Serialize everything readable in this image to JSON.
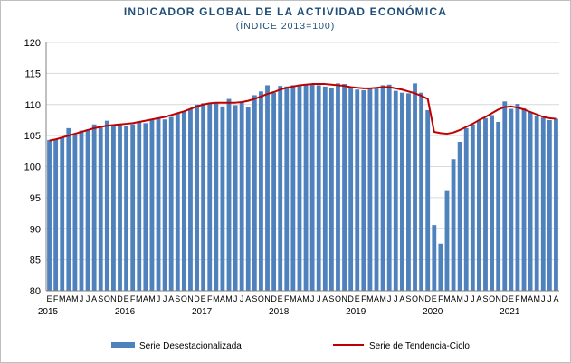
{
  "chart_data": {
    "type": "bar",
    "title": "INDICADOR GLOBAL DE LA ACTIVIDAD ECONÓMICA",
    "subtitle": "(ÍNDICE 2013=100)",
    "ylim": [
      80,
      120
    ],
    "yticks": [
      80,
      85,
      90,
      95,
      100,
      105,
      110,
      115,
      120
    ],
    "grid": true,
    "legend_position": "bottom",
    "month_labels": [
      "E",
      "F",
      "M",
      "A",
      "M",
      "J",
      "J",
      "A",
      "S",
      "O",
      "N",
      "D"
    ],
    "years": [
      "2015",
      "2016",
      "2017",
      "2018",
      "2019",
      "2020",
      "2021"
    ],
    "series": [
      {
        "name": "Serie Desestacionalizada",
        "type": "bar",
        "color": "#4f81bd",
        "values": [
          104.3,
          104.5,
          104.8,
          106.2,
          105.2,
          105.8,
          106.0,
          106.8,
          106.3,
          107.4,
          106.5,
          106.7,
          106.5,
          106.8,
          107.3,
          107.0,
          107.5,
          107.8,
          107.6,
          108.0,
          108.6,
          108.9,
          109.3,
          110.0,
          110.2,
          110.3,
          110.3,
          109.7,
          110.9,
          109.9,
          110.3,
          109.6,
          111.5,
          112.1,
          113.1,
          111.9,
          113.0,
          112.9,
          113.1,
          113.1,
          113.3,
          113.2,
          113.1,
          112.9,
          112.6,
          113.4,
          113.3,
          112.6,
          112.4,
          112.3,
          112.5,
          112.8,
          113.1,
          113.2,
          112.2,
          111.9,
          111.8,
          113.4,
          111.9,
          109.1,
          90.6,
          87.6,
          96.2,
          101.2,
          104.0,
          106.2,
          106.8,
          107.4,
          107.8,
          108.3,
          107.2,
          110.5,
          109.3,
          110.1,
          109.4,
          108.8,
          108.1,
          107.9,
          107.5,
          107.7
        ]
      },
      {
        "name": "Serie de Tendencia-Ciclo",
        "type": "line",
        "color": "#c00000",
        "values": [
          104.2,
          104.4,
          104.7,
          105.0,
          105.3,
          105.6,
          105.9,
          106.2,
          106.4,
          106.6,
          106.7,
          106.8,
          106.9,
          107.0,
          107.2,
          107.4,
          107.6,
          107.8,
          108.0,
          108.3,
          108.6,
          108.9,
          109.3,
          109.7,
          110.0,
          110.2,
          110.3,
          110.3,
          110.3,
          110.3,
          110.4,
          110.6,
          110.9,
          111.3,
          111.7,
          112.0,
          112.4,
          112.7,
          112.9,
          113.1,
          113.2,
          113.3,
          113.3,
          113.3,
          113.2,
          113.1,
          113.0,
          112.8,
          112.7,
          112.6,
          112.6,
          112.7,
          112.8,
          112.8,
          112.6,
          112.4,
          112.1,
          111.8,
          111.4,
          110.9,
          105.6,
          105.4,
          105.3,
          105.5,
          105.9,
          106.4,
          106.9,
          107.5,
          108.0,
          108.6,
          109.2,
          109.6,
          109.7,
          109.5,
          109.2,
          108.8,
          108.4,
          108.0,
          107.8,
          107.7
        ]
      }
    ]
  }
}
